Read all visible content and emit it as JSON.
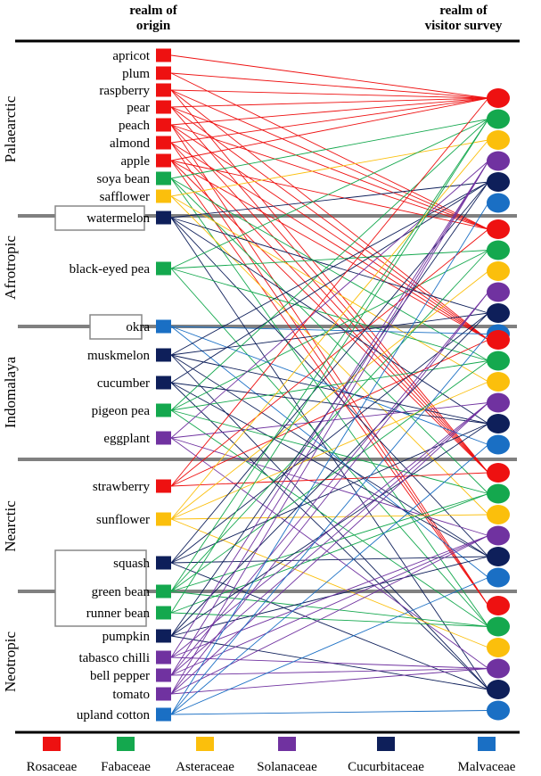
{
  "headers": {
    "origin": [
      "realm of",
      "origin"
    ],
    "survey": [
      "realm of",
      "visitor survey"
    ]
  },
  "realms": [
    "Palaearctic",
    "Afrotropic",
    "Indomalaya",
    "Nearctic",
    "Neotropic"
  ],
  "families": [
    {
      "key": "ros",
      "name": "Rosaceae",
      "color": "#ee1111"
    },
    {
      "key": "fab",
      "name": "Fabaceae",
      "color": "#14a84e"
    },
    {
      "key": "ast",
      "name": "Asteraceae",
      "color": "#fbbf0c"
    },
    {
      "key": "sol",
      "name": "Solanaceae",
      "color": "#7032a0"
    },
    {
      "key": "cuc",
      "name": "Cucurbitaceae",
      "color": "#0e1f5a"
    },
    {
      "key": "mal",
      "name": "Malvaceae",
      "color": "#1a6fc4"
    }
  ],
  "crops": [
    {
      "name": "apricot",
      "realm": "Palaearctic",
      "family": "ros",
      "links": [
        "Palaearctic"
      ]
    },
    {
      "name": "plum",
      "realm": "Palaearctic",
      "family": "ros",
      "links": [
        "Palaearctic",
        "Afrotropic"
      ]
    },
    {
      "name": "raspberry",
      "realm": "Palaearctic",
      "family": "ros",
      "links": [
        "Palaearctic",
        "Afrotropic",
        "Indomalaya",
        "Nearctic"
      ]
    },
    {
      "name": "pear",
      "realm": "Palaearctic",
      "family": "ros",
      "links": [
        "Palaearctic",
        "Afrotropic",
        "Indomalaya",
        "Nearctic"
      ]
    },
    {
      "name": "peach",
      "realm": "Palaearctic",
      "family": "ros",
      "links": [
        "Palaearctic",
        "Afrotropic",
        "Indomalaya",
        "Nearctic",
        "Neotropic"
      ]
    },
    {
      "name": "almond",
      "realm": "Palaearctic",
      "family": "ros",
      "links": [
        "Palaearctic",
        "Indomalaya",
        "Nearctic",
        "Neotropic"
      ]
    },
    {
      "name": "apple",
      "realm": "Palaearctic",
      "family": "ros",
      "links": [
        "Palaearctic",
        "Afrotropic",
        "Indomalaya",
        "Nearctic",
        "Neotropic"
      ]
    },
    {
      "name": "soya bean",
      "realm": "Palaearctic",
      "family": "fab",
      "links": [
        "Palaearctic",
        "Indomalaya",
        "Nearctic",
        "Neotropic"
      ]
    },
    {
      "name": "safflower",
      "realm": "Palaearctic",
      "family": "ast",
      "links": [
        "Palaearctic",
        "Indomalaya",
        "Nearctic"
      ]
    },
    {
      "name": "watermelon",
      "realm": "Afrotropic",
      "family": "cuc",
      "boxed": true,
      "links": [
        "Palaearctic",
        "Afrotropic",
        "Indomalaya",
        "Nearctic",
        "Neotropic"
      ]
    },
    {
      "name": "black-eyed pea",
      "realm": "Afrotropic",
      "family": "fab",
      "links": [
        "Palaearctic",
        "Afrotropic",
        "Indomalaya",
        "Neotropic"
      ]
    },
    {
      "name": "okra",
      "realm": "Indomalaya",
      "family": "mal",
      "boxed": true,
      "links": [
        "Afrotropic",
        "Indomalaya",
        "Nearctic"
      ]
    },
    {
      "name": "muskmelon",
      "realm": "Indomalaya",
      "family": "cuc",
      "links": [
        "Palaearctic",
        "Afrotropic",
        "Indomalaya",
        "Nearctic",
        "Neotropic"
      ]
    },
    {
      "name": "cucumber",
      "realm": "Indomalaya",
      "family": "cuc",
      "links": [
        "Palaearctic",
        "Indomalaya",
        "Nearctic",
        "Neotropic"
      ]
    },
    {
      "name": "pigeon pea",
      "realm": "Indomalaya",
      "family": "fab",
      "links": [
        "Palaearctic",
        "Afrotropic",
        "Indomalaya",
        "Nearctic",
        "Neotropic"
      ]
    },
    {
      "name": "eggplant",
      "realm": "Indomalaya",
      "family": "sol",
      "links": [
        "Palaearctic",
        "Indomalaya",
        "Nearctic",
        "Neotropic"
      ]
    },
    {
      "name": "strawberry",
      "realm": "Nearctic",
      "family": "ros",
      "links": [
        "Palaearctic",
        "Afrotropic",
        "Indomalaya",
        "Nearctic"
      ]
    },
    {
      "name": "sunflower",
      "realm": "Nearctic",
      "family": "ast",
      "links": [
        "Palaearctic",
        "Afrotropic",
        "Indomalaya",
        "Nearctic",
        "Neotropic"
      ]
    },
    {
      "name": "squash",
      "realm": "Nearctic",
      "family": "cuc",
      "boxed": true,
      "links": [
        "Palaearctic",
        "Afrotropic",
        "Indomalaya",
        "Nearctic",
        "Neotropic"
      ]
    },
    {
      "name": "green bean",
      "realm": "Neotropic",
      "family": "fab",
      "boxed": true,
      "links": [
        "Palaearctic",
        "Afrotropic",
        "Indomalaya",
        "Nearctic",
        "Neotropic"
      ]
    },
    {
      "name": "runner bean",
      "realm": "Neotropic",
      "family": "fab",
      "boxed": true,
      "links": [
        "Palaearctic",
        "Nearctic",
        "Neotropic"
      ]
    },
    {
      "name": "pumpkin",
      "realm": "Neotropic",
      "family": "cuc",
      "links": [
        "Palaearctic",
        "Afrotropic",
        "Indomalaya",
        "Nearctic",
        "Neotropic"
      ]
    },
    {
      "name": "tabasco chilli",
      "realm": "Neotropic",
      "family": "sol",
      "links": [
        "Palaearctic",
        "Indomalaya",
        "Nearctic",
        "Neotropic"
      ]
    },
    {
      "name": "bell pepper",
      "realm": "Neotropic",
      "family": "sol",
      "links": [
        "Palaearctic",
        "Afrotropic",
        "Indomalaya",
        "Nearctic",
        "Neotropic"
      ]
    },
    {
      "name": "tomato",
      "realm": "Neotropic",
      "family": "sol",
      "links": [
        "Palaearctic",
        "Afrotropic",
        "Indomalaya",
        "Nearctic",
        "Neotropic"
      ]
    },
    {
      "name": "upland cotton",
      "realm": "Neotropic",
      "family": "mal",
      "links": [
        "Palaearctic",
        "Afrotropic",
        "Indomalaya",
        "Nearctic",
        "Neotropic"
      ]
    }
  ]
}
